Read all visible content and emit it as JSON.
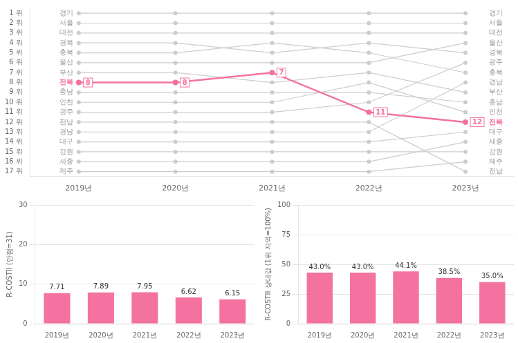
{
  "chart_data": [
    {
      "type": "line",
      "categories": [
        "2019년",
        "2020년",
        "2021년",
        "2022년",
        "2023년"
      ],
      "series": [
        {
          "name": "경기",
          "color": "#cccccc",
          "values": [
            1,
            1,
            1,
            1,
            1
          ]
        },
        {
          "name": "서울",
          "color": "#cccccc",
          "values": [
            2,
            2,
            2,
            2,
            2
          ]
        },
        {
          "name": "대전",
          "color": "#cccccc",
          "values": [
            3,
            3,
            3,
            3,
            3
          ]
        },
        {
          "name": "경북",
          "color": "#cccccc",
          "values": [
            4,
            4,
            5,
            4,
            5
          ]
        },
        {
          "name": "충북",
          "color": "#cccccc",
          "values": [
            5,
            5,
            4,
            5,
            7
          ]
        },
        {
          "name": "울산",
          "color": "#cccccc",
          "values": [
            6,
            6,
            6,
            6,
            4
          ]
        },
        {
          "name": "부산",
          "color": "#cccccc",
          "values": [
            7,
            7,
            8,
            7,
            9
          ]
        },
        {
          "name": "전북",
          "color": "#f472a0",
          "values": [
            8,
            8,
            7,
            11,
            12
          ],
          "data_labels": true
        },
        {
          "name": "충남",
          "color": "#cccccc",
          "values": [
            9,
            9,
            9,
            9,
            10
          ]
        },
        {
          "name": "인천",
          "color": "#cccccc",
          "values": [
            10,
            10,
            10,
            8,
            11
          ]
        },
        {
          "name": "광주",
          "color": "#cccccc",
          "values": [
            11,
            11,
            11,
            10,
            6
          ]
        },
        {
          "name": "전남",
          "color": "#cccccc",
          "values": [
            12,
            12,
            12,
            12,
            17
          ]
        },
        {
          "name": "경남",
          "color": "#cccccc",
          "values": [
            13,
            13,
            13,
            13,
            8
          ]
        },
        {
          "name": "대구",
          "color": "#cccccc",
          "values": [
            14,
            14,
            14,
            14,
            13
          ]
        },
        {
          "name": "강원",
          "color": "#cccccc",
          "values": [
            15,
            15,
            15,
            15,
            15
          ]
        },
        {
          "name": "세종",
          "color": "#cccccc",
          "values": [
            16,
            16,
            16,
            16,
            14
          ]
        },
        {
          "name": "제주",
          "color": "#cccccc",
          "values": [
            17,
            17,
            17,
            17,
            16
          ]
        }
      ],
      "ylim": [
        17.5,
        0.5
      ],
      "yticks": [
        {
          "value": 1,
          "label": "1 위"
        },
        {
          "value": 2,
          "label": "2 위"
        },
        {
          "value": 3,
          "label": "3 위"
        },
        {
          "value": 4,
          "label": "4 위"
        },
        {
          "value": 5,
          "label": "5 위"
        },
        {
          "value": 6,
          "label": "6 위"
        },
        {
          "value": 7,
          "label": "7 위"
        },
        {
          "value": 8,
          "label": "8 위"
        },
        {
          "value": 9,
          "label": "9 위"
        },
        {
          "value": 10,
          "label": "10 위"
        },
        {
          "value": 11,
          "label": "11 위"
        },
        {
          "value": 12,
          "label": "12 위"
        },
        {
          "value": 13,
          "label": "13 위"
        },
        {
          "value": 14,
          "label": "14 위"
        },
        {
          "value": 15,
          "label": "15 위"
        },
        {
          "value": 16,
          "label": "16 위"
        },
        {
          "value": 17,
          "label": "17 위"
        }
      ],
      "grid": false,
      "annotations": [
        {
          "text": "경기",
          "x": "2019년",
          "y": 1
        },
        {
          "text": "서울",
          "x": "2019년",
          "y": 2
        },
        {
          "text": "대전",
          "x": "2019년",
          "y": 3
        },
        {
          "text": "경북",
          "x": "2019년",
          "y": 4
        },
        {
          "text": "충북",
          "x": "2019년",
          "y": 5
        },
        {
          "text": "울산",
          "x": "2019년",
          "y": 6
        },
        {
          "text": "부산",
          "x": "2019년",
          "y": 7
        },
        {
          "text": "전북",
          "x": "2019년",
          "y": 8
        },
        {
          "text": "충남",
          "x": "2019년",
          "y": 9
        },
        {
          "text": "인천",
          "x": "2019년",
          "y": 10
        },
        {
          "text": "광주",
          "x": "2019년",
          "y": 11
        },
        {
          "text": "전남",
          "x": "2019년",
          "y": 12
        },
        {
          "text": "경남",
          "x": "2019년",
          "y": 13
        },
        {
          "text": "대구",
          "x": "2019년",
          "y": 14
        },
        {
          "text": "강원",
          "x": "2019년",
          "y": 15
        },
        {
          "text": "세종",
          "x": "2019년",
          "y": 16
        },
        {
          "text": "제주",
          "x": "2019년",
          "y": 17
        },
        {
          "text": "경기",
          "x": "2023년",
          "y": 1
        },
        {
          "text": "서울",
          "x": "2023년",
          "y": 2
        },
        {
          "text": "대전",
          "x": "2023년",
          "y": 3
        },
        {
          "text": "울산",
          "x": "2023년",
          "y": 4
        },
        {
          "text": "경북",
          "x": "2023년",
          "y": 5
        },
        {
          "text": "광주",
          "x": "2023년",
          "y": 6
        },
        {
          "text": "충북",
          "x": "2023년",
          "y": 7
        },
        {
          "text": "경남",
          "x": "2023년",
          "y": 8
        },
        {
          "text": "부산",
          "x": "2023년",
          "y": 9
        },
        {
          "text": "충남",
          "x": "2023년",
          "y": 10
        },
        {
          "text": "인천",
          "x": "2023년",
          "y": 11
        },
        {
          "text": "전북",
          "x": "2023년",
          "y": 12
        },
        {
          "text": "대구",
          "x": "2023년",
          "y": 13
        },
        {
          "text": "세종",
          "x": "2023년",
          "y": 14
        },
        {
          "text": "강원",
          "x": "2023년",
          "y": 15
        },
        {
          "text": "제주",
          "x": "2023년",
          "y": 16
        },
        {
          "text": "전남",
          "x": "2023년",
          "y": 17
        }
      ]
    },
    {
      "type": "bar",
      "categories": [
        "2019년",
        "2020년",
        "2021년",
        "2022년",
        "2023년"
      ],
      "values": [
        7.71,
        7.89,
        7.95,
        6.62,
        6.15
      ],
      "color": "#f472a0",
      "ylabel": "R-COSTII (만점=31)",
      "ylim": [
        0,
        30
      ],
      "yticks": [
        0,
        10,
        20,
        30
      ],
      "grid": true,
      "data_labels": true
    },
    {
      "type": "bar",
      "categories": [
        "2019년",
        "2020년",
        "2021년",
        "2022년",
        "2023년"
      ],
      "values": [
        43.0,
        43.0,
        44.1,
        38.5,
        35.0
      ],
      "value_labels": [
        "43.0%",
        "43.0%",
        "44.1%",
        "38.5%",
        "35.0%"
      ],
      "color": "#f472a0",
      "ylabel": "R-COSTII 상대값 (1위 지역=100%)",
      "ylim": [
        0,
        100
      ],
      "yticks": [
        0,
        25,
        50,
        75,
        100
      ],
      "grid": true,
      "data_labels": true
    }
  ]
}
